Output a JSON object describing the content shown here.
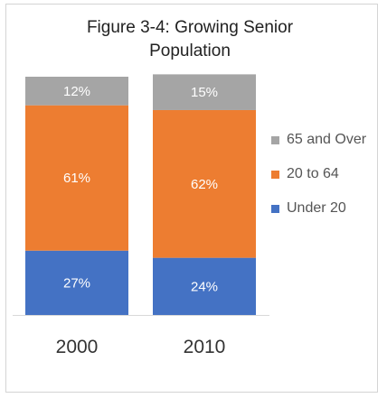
{
  "chart_data": {
    "type": "bar",
    "stacked": true,
    "title_lines": [
      "Figure 3-4:  Growing Senior",
      "Population"
    ],
    "categories": [
      "2000",
      "2010"
    ],
    "series": [
      {
        "name": "Under 20",
        "values": [
          27,
          24
        ],
        "labels": [
          "27%",
          "24%"
        ],
        "color": "#4472C4"
      },
      {
        "name": "20 to 64",
        "values": [
          61,
          62
        ],
        "labels": [
          "61%",
          "62%"
        ],
        "color": "#ED7D31"
      },
      {
        "name": "65 and Over",
        "values": [
          12,
          15
        ],
        "labels": [
          "12%",
          "15%"
        ],
        "color": "#A5A5A5"
      }
    ],
    "ylim": [
      0,
      100
    ],
    "legend_position": "right",
    "legend_order": [
      "65 and Over",
      "20 to 64",
      "Under 20"
    ],
    "grid": false
  }
}
